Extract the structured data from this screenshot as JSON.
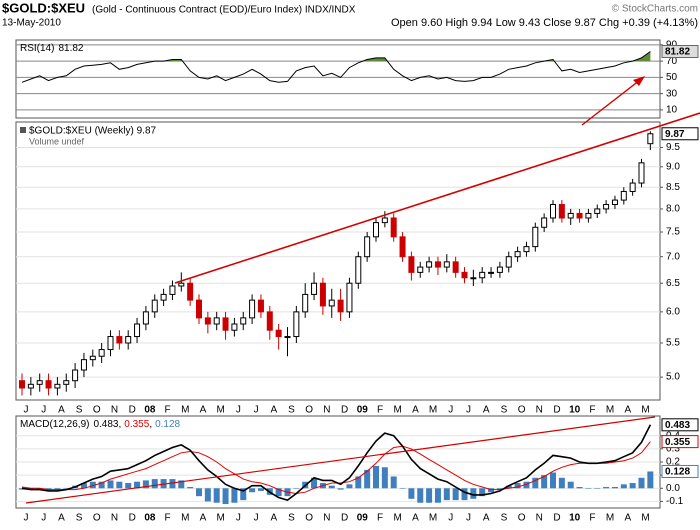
{
  "header": {
    "symbol": "$GOLD:$XEU",
    "description": "(Gold - Continuous Contract (EOD)/Euro Index) INDX/INDX",
    "date": "13-May-2010",
    "quote": "Open 9.60 High 9.94 Low 9.43 Close 9.87 Chg +0.39 (+4.13%)",
    "watermark": "© StockCharts.com"
  },
  "chart_data": [
    {
      "type": "line",
      "ylim": [
        0,
        96
      ],
      "yticks": [
        10,
        30,
        50,
        70,
        90
      ],
      "grid": true,
      "grid_color": "#888",
      "fill_above": 70,
      "fill_color": "#5f8a3a",
      "series": [
        {
          "name": "RSI(14)",
          "color": "#000000",
          "values": [
            44,
            48,
            52,
            46,
            50,
            52,
            60,
            64,
            65,
            66,
            68,
            60,
            62,
            66,
            68,
            70,
            70,
            72,
            72,
            58,
            50,
            48,
            52,
            46,
            50,
            54,
            60,
            54,
            46,
            44,
            45,
            58,
            62,
            64,
            52,
            55,
            50,
            62,
            68,
            72,
            74,
            74,
            60,
            52,
            46,
            50,
            52,
            48,
            50,
            46,
            45,
            46,
            50,
            50,
            54,
            60,
            62,
            64,
            68,
            70,
            72,
            58,
            60,
            56,
            58,
            60,
            62,
            64,
            68,
            70,
            74,
            81.82
          ]
        }
      ]
    },
    {
      "type": "candlestick",
      "title": "$GOLD:$XEU (Weekly) 9.87",
      "subtitle": "Volume undef",
      "log": true,
      "ylim": [
        4.69,
        10.2
      ],
      "grid": true,
      "grid_color": "#e2e2e2",
      "up_color": "#000000",
      "down_color": "#cc0000",
      "yticks": [
        {
          "value": 5,
          "label": "5.0"
        },
        5.5,
        {
          "value": 6,
          "label": "6.0"
        },
        6.5,
        {
          "value": 7,
          "label": "7.0"
        },
        7.5,
        {
          "value": 8,
          "label": "8.0"
        },
        8.5,
        {
          "value": 9,
          "label": "9.0"
        },
        9.5
      ],
      "categories": [
        "J",
        null,
        "J",
        null,
        "A",
        null,
        "S",
        null,
        "O",
        null,
        "N",
        null,
        "D",
        null,
        "08",
        null,
        "F",
        null,
        "M",
        null,
        "A",
        null,
        "M",
        null,
        "J",
        null,
        "J",
        null,
        "A",
        null,
        "S",
        null,
        "O",
        null,
        "N",
        null,
        "D",
        null,
        "09",
        null,
        "F",
        null,
        "M",
        null,
        "A",
        null,
        "M",
        null,
        "J",
        null,
        "J",
        null,
        "A",
        null,
        "S",
        null,
        "O",
        null,
        "N",
        null,
        "D",
        null,
        "10",
        null,
        "F",
        null,
        "M",
        null,
        "A",
        null,
        "M",
        null
      ],
      "open": [
        4.95,
        4.85,
        4.9,
        4.95,
        4.85,
        4.9,
        4.95,
        5.1,
        5.25,
        5.3,
        5.4,
        5.6,
        5.5,
        5.6,
        5.8,
        6.0,
        6.2,
        6.3,
        6.45,
        6.5,
        6.2,
        5.9,
        5.8,
        5.9,
        5.7,
        5.8,
        5.9,
        6.2,
        6.0,
        5.7,
        5.6,
        5.6,
        6.0,
        6.3,
        6.5,
        6.1,
        6.2,
        6.0,
        6.5,
        7.0,
        7.4,
        7.7,
        7.8,
        7.4,
        7.0,
        6.7,
        6.8,
        6.9,
        6.8,
        6.9,
        6.7,
        6.6,
        6.6,
        6.7,
        6.7,
        6.8,
        7.0,
        7.1,
        7.2,
        7.6,
        7.8,
        8.1,
        7.8,
        7.9,
        7.8,
        7.9,
        8.0,
        8.1,
        8.2,
        8.4,
        8.6,
        9.6
      ],
      "high": [
        5.05,
        5.0,
        5.05,
        5.05,
        5.0,
        5.05,
        5.2,
        5.35,
        5.4,
        5.5,
        5.7,
        5.7,
        5.7,
        5.9,
        6.1,
        6.3,
        6.4,
        6.55,
        6.7,
        6.6,
        6.3,
        6.0,
        6.0,
        6.0,
        5.9,
        6.0,
        6.3,
        6.3,
        6.1,
        5.8,
        5.75,
        6.1,
        6.5,
        6.7,
        6.6,
        6.4,
        6.4,
        6.6,
        7.1,
        7.5,
        7.8,
        7.95,
        7.9,
        7.5,
        7.1,
        6.9,
        7.0,
        7.0,
        7.05,
        7.0,
        6.8,
        6.75,
        6.8,
        6.8,
        6.9,
        7.1,
        7.2,
        7.3,
        7.7,
        7.9,
        8.2,
        8.2,
        8.0,
        8.0,
        8.0,
        8.1,
        8.2,
        8.3,
        8.5,
        8.7,
        9.2,
        9.94
      ],
      "low": [
        4.75,
        4.75,
        4.8,
        4.75,
        4.75,
        4.8,
        4.85,
        5.0,
        5.15,
        5.2,
        5.3,
        5.4,
        5.4,
        5.5,
        5.7,
        5.9,
        6.1,
        6.2,
        6.35,
        6.1,
        5.8,
        5.65,
        5.7,
        5.55,
        5.6,
        5.7,
        5.8,
        5.9,
        5.55,
        5.4,
        5.3,
        5.5,
        5.9,
        6.2,
        5.95,
        5.9,
        5.85,
        5.9,
        6.4,
        6.9,
        7.3,
        7.6,
        7.3,
        6.9,
        6.55,
        6.6,
        6.7,
        6.65,
        6.7,
        6.6,
        6.5,
        6.45,
        6.5,
        6.6,
        6.6,
        6.7,
        6.9,
        7.0,
        7.1,
        7.5,
        7.7,
        7.7,
        7.65,
        7.7,
        7.7,
        7.8,
        7.9,
        8.0,
        8.1,
        8.3,
        8.5,
        9.43
      ],
      "close": [
        4.85,
        4.9,
        4.95,
        4.85,
        4.9,
        4.95,
        5.1,
        5.25,
        5.3,
        5.4,
        5.6,
        5.5,
        5.6,
        5.8,
        6.0,
        6.2,
        6.3,
        6.45,
        6.5,
        6.2,
        5.9,
        5.8,
        5.9,
        5.7,
        5.8,
        5.9,
        6.2,
        6.0,
        5.7,
        5.6,
        5.6,
        6.0,
        6.3,
        6.5,
        6.1,
        6.2,
        6.0,
        6.5,
        7.0,
        7.4,
        7.7,
        7.8,
        7.4,
        7.0,
        6.7,
        6.8,
        6.9,
        6.8,
        6.9,
        6.7,
        6.6,
        6.6,
        6.7,
        6.7,
        6.8,
        7.0,
        7.1,
        7.2,
        7.6,
        7.8,
        8.1,
        7.8,
        7.9,
        7.8,
        7.9,
        8.0,
        8.1,
        8.2,
        8.4,
        8.6,
        9.1,
        9.87
      ]
    },
    {
      "type": "macd",
      "ylim": [
        -0.15,
        0.55
      ],
      "grid": true,
      "grid_color": "#e2e2e2",
      "legend_separator": ",",
      "yticks": [
        -0.1,
        {
          "value": 0,
          "label": "0.0"
        },
        0.1,
        0.2,
        0.3,
        0.4
      ],
      "categories": [
        "J",
        null,
        "J",
        null,
        "A",
        null,
        "S",
        null,
        "O",
        null,
        "N",
        null,
        "D",
        null,
        "08",
        null,
        "F",
        null,
        "M",
        null,
        "A",
        null,
        "M",
        null,
        "J",
        null,
        "J",
        null,
        "A",
        null,
        "S",
        null,
        "O",
        null,
        "N",
        null,
        "D",
        null,
        "09",
        null,
        "F",
        null,
        "M",
        null,
        "A",
        null,
        "M",
        null,
        "J",
        null,
        "J",
        null,
        "A",
        null,
        "S",
        null,
        "O",
        null,
        "N",
        null,
        "D",
        null,
        "10",
        null,
        "F",
        null,
        "M",
        null,
        "A",
        null,
        "M",
        null
      ],
      "series": [
        {
          "style": "bar",
          "color": "#3f7fc0",
          "values": [
            -0.01,
            -0.01,
            -0.01,
            -0.01,
            -0.01,
            0.0,
            0.02,
            0.04,
            0.05,
            0.05,
            0.06,
            0.05,
            0.04,
            0.05,
            0.06,
            0.07,
            0.07,
            0.07,
            0.06,
            0.01,
            -0.06,
            -0.1,
            -0.11,
            -0.12,
            -0.11,
            -0.09,
            -0.03,
            -0.02,
            -0.05,
            -0.06,
            -0.06,
            0.0,
            0.05,
            0.08,
            0.04,
            0.02,
            -0.01,
            0.03,
            0.09,
            0.14,
            0.17,
            0.16,
            0.09,
            0.0,
            -0.08,
            -0.11,
            -0.11,
            -0.11,
            -0.09,
            -0.09,
            -0.09,
            -0.08,
            -0.06,
            -0.03,
            -0.01,
            0.02,
            0.04,
            0.05,
            0.08,
            0.1,
            0.12,
            0.08,
            0.05,
            0.01,
            0.0,
            0.0,
            0.01,
            0.01,
            0.03,
            0.04,
            0.08,
            0.128
          ]
        },
        {
          "style": "line",
          "color": "#dd0000",
          "values": [
            0.01,
            0.0,
            0.0,
            -0.01,
            -0.01,
            -0.01,
            -0.01,
            0.0,
            0.02,
            0.04,
            0.07,
            0.09,
            0.11,
            0.13,
            0.15,
            0.18,
            0.21,
            0.24,
            0.27,
            0.28,
            0.27,
            0.24,
            0.2,
            0.15,
            0.11,
            0.07,
            0.05,
            0.04,
            0.02,
            -0.01,
            -0.03,
            -0.04,
            -0.03,
            0.0,
            0.02,
            0.04,
            0.04,
            0.05,
            0.08,
            0.13,
            0.19,
            0.26,
            0.31,
            0.32,
            0.3,
            0.26,
            0.22,
            0.18,
            0.14,
            0.1,
            0.06,
            0.03,
            0.01,
            -0.01,
            -0.01,
            0.0,
            0.01,
            0.03,
            0.06,
            0.09,
            0.13,
            0.16,
            0.18,
            0.19,
            0.19,
            0.19,
            0.19,
            0.2,
            0.21,
            0.23,
            0.27,
            0.355
          ]
        },
        {
          "name": "MACD(12,26,9)",
          "style": "line",
          "color": "#000000",
          "values": [
            0.0,
            -0.01,
            -0.01,
            -0.02,
            -0.02,
            -0.01,
            0.01,
            0.04,
            0.07,
            0.09,
            0.13,
            0.14,
            0.15,
            0.18,
            0.21,
            0.25,
            0.28,
            0.31,
            0.33,
            0.29,
            0.21,
            0.14,
            0.09,
            0.03,
            0.0,
            -0.02,
            0.02,
            0.02,
            -0.03,
            -0.07,
            -0.09,
            -0.04,
            0.02,
            0.08,
            0.06,
            0.06,
            0.03,
            0.08,
            0.17,
            0.27,
            0.36,
            0.42,
            0.4,
            0.32,
            0.22,
            0.15,
            0.11,
            0.07,
            0.05,
            0.01,
            -0.03,
            -0.05,
            -0.05,
            -0.04,
            -0.02,
            0.02,
            0.05,
            0.08,
            0.14,
            0.19,
            0.25,
            0.24,
            0.23,
            0.2,
            0.19,
            0.19,
            0.2,
            0.21,
            0.24,
            0.27,
            0.35,
            0.483
          ]
        }
      ]
    }
  ]
}
